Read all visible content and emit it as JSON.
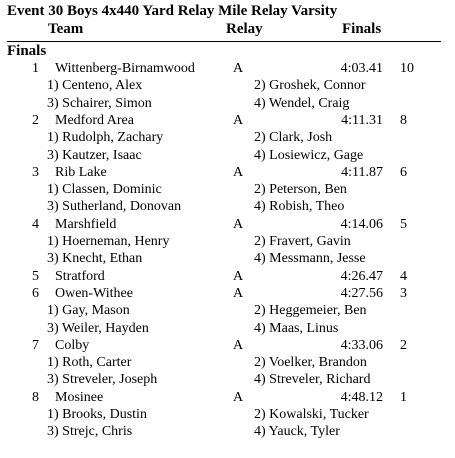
{
  "event_title": "Event 30  Boys 4x440 Yard Relay Mile Relay Varsity",
  "headers": {
    "team": "Team",
    "relay": "Relay",
    "finals": "Finals"
  },
  "section": "Finals",
  "results": [
    {
      "place": "1",
      "team": "Wittenberg-Birnamwood",
      "relay": "A",
      "time": "4:03.41",
      "points": "10",
      "runners": [
        "1) Centeno, Alex",
        "2) Groshek, Connor",
        "3) Schairer, Simon",
        "4) Wendel, Craig"
      ]
    },
    {
      "place": "2",
      "team": "Medford Area",
      "relay": "A",
      "time": "4:11.31",
      "points": "8",
      "runners": [
        "1) Rudolph, Zachary",
        "2) Clark, Josh",
        "3) Kautzer, Isaac",
        "4) Losiewicz, Gage"
      ]
    },
    {
      "place": "3",
      "team": "Rib Lake",
      "relay": "A",
      "time": "4:11.87",
      "points": "6",
      "runners": [
        "1) Classen, Dominic",
        "2) Peterson, Ben",
        "3) Sutherland, Donovan",
        "4) Robish, Theo"
      ]
    },
    {
      "place": "4",
      "team": "Marshfield",
      "relay": "A",
      "time": "4:14.06",
      "points": "5",
      "runners": [
        "1) Hoerneman, Henry",
        "2) Fravert, Gavin",
        "3) Knecht, Ethan",
        "4) Messmann, Jesse"
      ]
    },
    {
      "place": "5",
      "team": "Stratford",
      "relay": "A",
      "time": "4:26.47",
      "points": "4",
      "runners": []
    },
    {
      "place": "6",
      "team": "Owen-Withee",
      "relay": "A",
      "time": "4:27.56",
      "points": "3",
      "runners": [
        "1) Gay, Mason",
        "2) Heggemeier, Ben",
        "3) Weiler, Hayden",
        "4) Maas, Linus"
      ]
    },
    {
      "place": "7",
      "team": "Colby",
      "relay": "A",
      "time": "4:33.06",
      "points": "2",
      "runners": [
        "1) Roth, Carter",
        "2) Voelker, Brandon",
        "3) Streveler, Joseph",
        "4) Streveler, Richard"
      ]
    },
    {
      "place": "8",
      "team": "Mosinee",
      "relay": "A",
      "time": "4:48.12",
      "points": "1",
      "runners": [
        "1) Brooks, Dustin",
        "2) Kowalski, Tucker",
        "3) Strejc, Chris",
        "4) Yauck, Tyler"
      ]
    }
  ]
}
